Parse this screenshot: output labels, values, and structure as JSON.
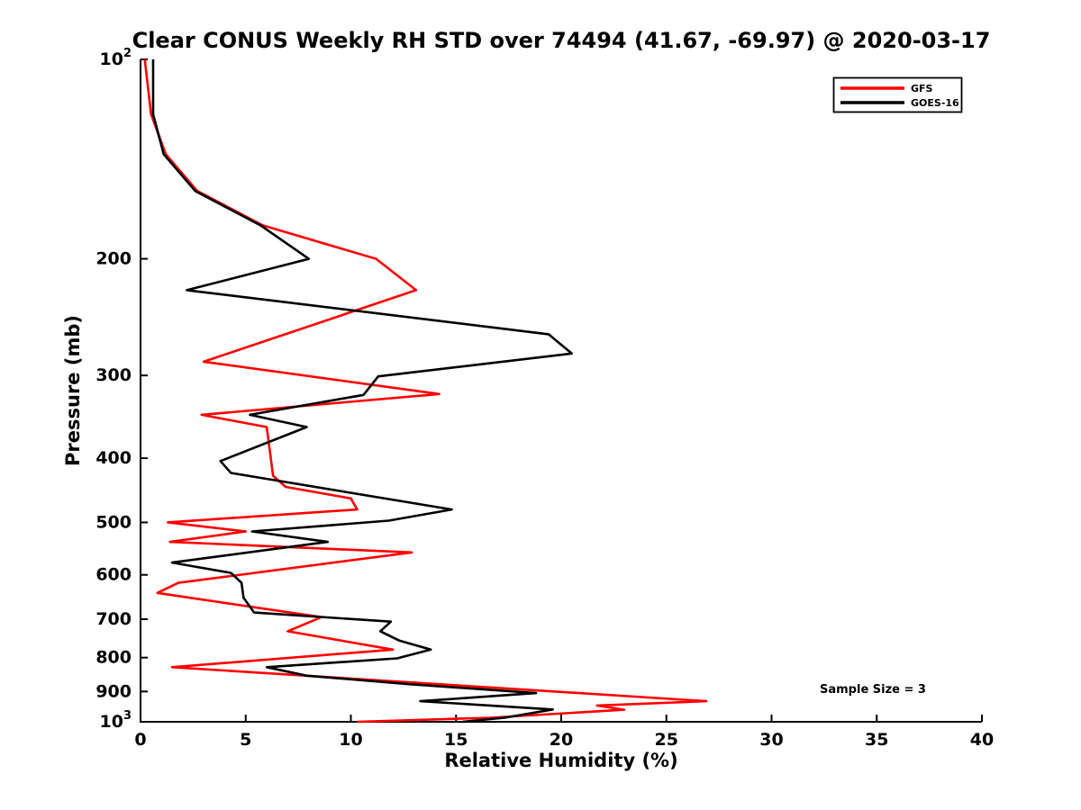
{
  "title": "Clear CONUS Weekly RH STD over 74494 (41.67, -69.97) @ 2020-03-17",
  "annotation": "Sample Size = 3",
  "legend": {
    "items": [
      {
        "label": "GFS",
        "color": "#ff0000"
      },
      {
        "label": "GOES-16",
        "color": "#000000"
      }
    ]
  },
  "chart_data": {
    "type": "line",
    "title": "Clear CONUS Weekly RH STD over 74494 (41.67, -69.97) @ 2020-03-17",
    "xlabel": "Relative Humidity (%)",
    "ylabel": "Pressure (mb)",
    "x_axis": {
      "min": 0,
      "max": 40,
      "ticks": [
        0,
        5,
        10,
        15,
        20,
        25,
        30,
        35,
        40
      ]
    },
    "y_axis": {
      "scale": "log",
      "min": 100,
      "max": 1000,
      "direction": "increasing-downward",
      "ticks": [
        100,
        200,
        300,
        400,
        500,
        600,
        700,
        800,
        900,
        1000
      ],
      "tick_labels": [
        "10^2",
        "200",
        "300",
        "400",
        "500",
        "600",
        "700",
        "800",
        "900",
        "10^3"
      ]
    },
    "legend_position": "upper-right",
    "grid": false,
    "series": [
      {
        "name": "GFS",
        "color": "#ff0000",
        "points_format": [
          "pressure_mb",
          "rh_std_percent"
        ],
        "points": [
          [
            100,
            0.2
          ],
          [
            121,
            0.5
          ],
          [
            139,
            1.2
          ],
          [
            158,
            2.7
          ],
          [
            178,
            5.8
          ],
          [
            200,
            11.2
          ],
          [
            223,
            13.1
          ],
          [
            286,
            3.0
          ],
          [
            320,
            14.2
          ],
          [
            344,
            2.9
          ],
          [
            359,
            6.0
          ],
          [
            425,
            6.3
          ],
          [
            442,
            6.9
          ],
          [
            460,
            10.0
          ],
          [
            478,
            10.3
          ],
          [
            500,
            1.3
          ],
          [
            516,
            5.0
          ],
          [
            535,
            1.4
          ],
          [
            555,
            12.9
          ],
          [
            617,
            1.8
          ],
          [
            639,
            0.8
          ],
          [
            695,
            8.6
          ],
          [
            730,
            7.0
          ],
          [
            778,
            12.0
          ],
          [
            827,
            1.5
          ],
          [
            931,
            26.9
          ],
          [
            945,
            21.7
          ],
          [
            959,
            23.0
          ],
          [
            986,
            16.6
          ],
          [
            1000,
            10.3
          ]
        ]
      },
      {
        "name": "GOES-16",
        "color": "#000000",
        "points_format": [
          "pressure_mb",
          "rh_std_percent"
        ],
        "points": [
          [
            100,
            0.6
          ],
          [
            121,
            0.6
          ],
          [
            139,
            1.1
          ],
          [
            158,
            2.6
          ],
          [
            178,
            5.7
          ],
          [
            200,
            8.0
          ],
          [
            223,
            2.2
          ],
          [
            260,
            19.4
          ],
          [
            278,
            20.5
          ],
          [
            301,
            11.3
          ],
          [
            321,
            10.6
          ],
          [
            344,
            5.2
          ],
          [
            359,
            7.9
          ],
          [
            404,
            3.8
          ],
          [
            421,
            4.3
          ],
          [
            478,
            14.8
          ],
          [
            497,
            11.8
          ],
          [
            516,
            5.3
          ],
          [
            535,
            8.9
          ],
          [
            575,
            1.5
          ],
          [
            596,
            4.3
          ],
          [
            617,
            4.8
          ],
          [
            650,
            4.9
          ],
          [
            684,
            5.4
          ],
          [
            706,
            11.9
          ],
          [
            730,
            11.4
          ],
          [
            754,
            12.3
          ],
          [
            778,
            13.8
          ],
          [
            802,
            12.2
          ],
          [
            827,
            6.0
          ],
          [
            852,
            7.9
          ],
          [
            878,
            12.9
          ],
          [
            905,
            18.8
          ],
          [
            931,
            13.3
          ],
          [
            958,
            19.6
          ],
          [
            986,
            17.3
          ],
          [
            1000,
            15.3
          ]
        ]
      }
    ]
  }
}
